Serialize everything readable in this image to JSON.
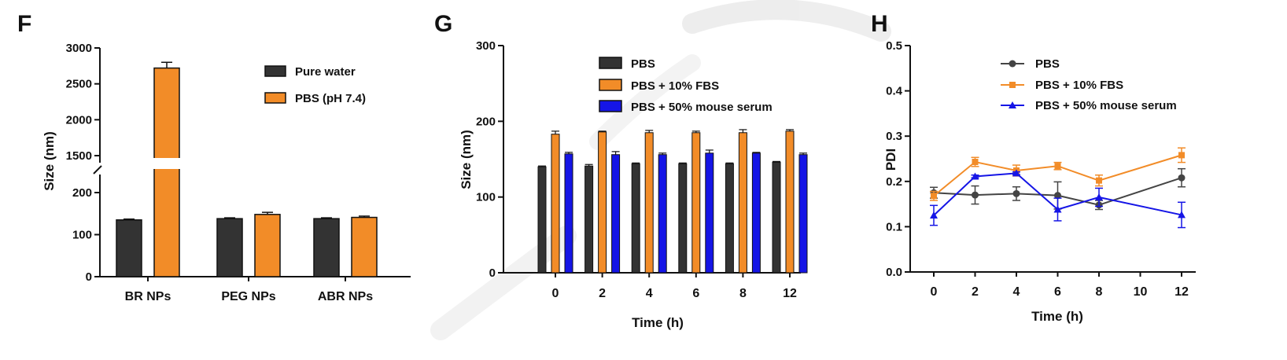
{
  "colors": {
    "black_series": "#333333",
    "orange_series": "#F28C28",
    "blue_series": "#1515E6",
    "axis": "#111111",
    "watermark": "#cfcfcf"
  },
  "chart_data": [
    {
      "panel": "F",
      "type": "bar",
      "categories": [
        "BR NPs",
        "PEG NPs",
        "ABR NPs"
      ],
      "series": [
        {
          "name": "Pure water",
          "values": [
            135,
            138,
            138
          ],
          "errors": [
            2,
            2,
            2
          ]
        },
        {
          "name": "PBS (pH 7.4)",
          "values": [
            2720,
            148,
            141
          ],
          "errors": [
            80,
            5,
            3
          ]
        }
      ],
      "title": "",
      "xlabel": "",
      "ylabel": "Size (nm)",
      "ylim": [
        0,
        3000
      ],
      "y_axis_break": [
        200,
        1500
      ],
      "y_ticks_lower": [
        0,
        100,
        200
      ],
      "y_ticks_upper": [
        1500,
        2000,
        2500,
        3000
      ],
      "legend_position": "top-right",
      "grid": false
    },
    {
      "panel": "G",
      "type": "bar",
      "categories": [
        "0",
        "2",
        "4",
        "6",
        "8",
        "12"
      ],
      "series": [
        {
          "name": "PBS",
          "values": [
            140,
            141,
            144,
            144,
            144,
            146
          ],
          "errors": [
            1,
            2,
            1,
            1,
            1,
            1
          ]
        },
        {
          "name": "PBS + 10% FBS",
          "values": [
            183,
            186,
            185,
            185,
            185,
            187
          ],
          "errors": [
            4,
            1,
            3,
            2,
            4,
            2
          ]
        },
        {
          "name": "PBS + 50% mouse serum",
          "values": [
            157,
            156,
            156,
            158,
            158,
            156
          ],
          "errors": [
            2,
            4,
            2,
            4,
            1,
            2
          ]
        }
      ],
      "title": "",
      "xlabel": "Time (h)",
      "ylabel": "Size (nm)",
      "ylim": [
        0,
        300
      ],
      "y_ticks": [
        0,
        100,
        200,
        300
      ],
      "legend_position": "top-right",
      "grid": false
    },
    {
      "panel": "H",
      "type": "line",
      "x": [
        0,
        2,
        4,
        6,
        8,
        12
      ],
      "series": [
        {
          "name": "PBS",
          "marker": "circle",
          "values": [
            0.175,
            0.17,
            0.173,
            0.169,
            0.148,
            0.208
          ],
          "errors": [
            0.012,
            0.02,
            0.015,
            0.03,
            0.01,
            0.02
          ]
        },
        {
          "name": "PBS + 10% FBS",
          "marker": "square",
          "values": [
            0.168,
            0.243,
            0.224,
            0.234,
            0.202,
            0.258
          ],
          "errors": [
            0.01,
            0.01,
            0.012,
            0.008,
            0.012,
            0.016
          ]
        },
        {
          "name": "PBS + 50% mouse serum",
          "marker": "triangle",
          "values": [
            0.125,
            0.211,
            0.218,
            0.138,
            0.165,
            0.126
          ],
          "errors": [
            0.022,
            0.003,
            0.003,
            0.025,
            0.02,
            0.028
          ]
        }
      ],
      "title": "",
      "xlabel": "Time (h)",
      "ylabel": "PDI",
      "xlim": [
        0,
        12
      ],
      "ylim": [
        0,
        0.5
      ],
      "x_ticks": [
        0,
        2,
        4,
        6,
        8,
        10,
        12
      ],
      "y_ticks": [
        0.0,
        0.1,
        0.2,
        0.3,
        0.4,
        0.5
      ],
      "y_tick_labels": [
        "0.0",
        "0.1",
        "0.2",
        "0.3",
        "0.4",
        "0.5"
      ],
      "legend_position": "top-right",
      "grid": false
    }
  ]
}
